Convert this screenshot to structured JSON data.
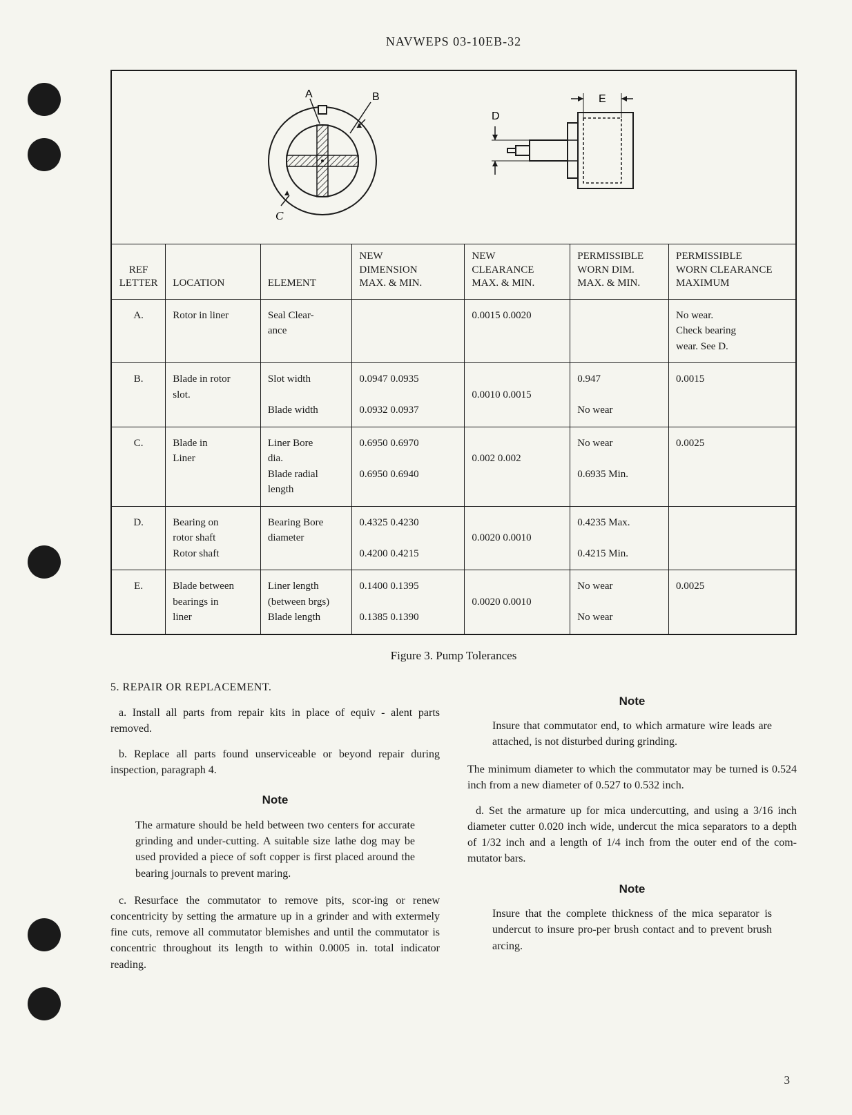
{
  "header": "NAVWEPS 03-10EB-32",
  "punch_holes": [
    120,
    200,
    790,
    1330,
    1430
  ],
  "diagram": {
    "labels": {
      "a": "A",
      "b": "B",
      "c": "C",
      "d": "D",
      "e": "E"
    },
    "colors": {
      "stroke": "#1a1a1a",
      "hatch": "#1a1a1a",
      "fill": "none"
    }
  },
  "table": {
    "headers": [
      "REF\nLETTER",
      "LOCATION",
      "ELEMENT",
      "NEW\nDIMENSION\nMAX. & MIN.",
      "NEW\nCLEARANCE\nMAX. & MIN.",
      "PERMISSIBLE\nWORN DIM.\nMAX. & MIN.",
      "PERMISSIBLE\nWORN CLEARANCE\nMAXIMUM"
    ],
    "rows": [
      {
        "ref": "A.",
        "location": "Rotor in liner",
        "element": "Seal Clear-\nance",
        "newdim": "",
        "newclr": "0.0015    0.0020",
        "worn": "",
        "wornclr": "No wear.\nCheck bearing\nwear.  See D."
      },
      {
        "ref": "B.",
        "location": "Blade in rotor\nslot.",
        "element": "Slot width\n\nBlade width",
        "newdim": "0.0947    0.0935\n\n0.0932    0.0937",
        "newclr": "\n0.0010    0.0015",
        "worn": "0.947\n\nNo wear",
        "wornclr": "0.0015"
      },
      {
        "ref": "C.",
        "location": "Blade in\nLiner",
        "element": "Liner Bore\ndia.\nBlade radial\nlength",
        "newdim": "0.6950    0.6970\n\n0.6950    0.6940",
        "newclr": "\n0.002      0.002",
        "worn": "No wear\n\n0.6935 Min.",
        "wornclr": "0.0025"
      },
      {
        "ref": "D.",
        "location": "Bearing on\nrotor shaft\nRotor shaft",
        "element": "Bearing Bore\ndiameter",
        "newdim": "0.4325    0.4230\n\n0.4200    0.4215",
        "newclr": "\n0.0020    0.0010",
        "worn": "0.4235 Max.\n\n0.4215 Min.",
        "wornclr": ""
      },
      {
        "ref": "E.",
        "location": "Blade between\nbearings in\nliner",
        "element": "Liner length\n(between brgs)\nBlade length",
        "newdim": "0.1400    0.1395\n\n0.1385    0.1390",
        "newclr": "\n0.0020    0.0010",
        "worn": "No wear\n\nNo wear",
        "wornclr": "0.0025"
      }
    ]
  },
  "figure_caption": "Figure 3.  Pump Tolerances",
  "body": {
    "section_head": "5. REPAIR OR REPLACEMENT.",
    "para_a": "a.  Install all parts from repair kits in place of equiv - alent parts removed.",
    "para_b": "b.  Replace all parts found unserviceable or beyond repair during inspection, paragraph 4.",
    "note1_head": "Note",
    "note1": "The armature should be held between two centers for accurate grinding and under-cutting. A suitable size lathe dog may be used provided a piece of soft copper is first placed around the bearing journals to prevent maring.",
    "para_c": "c.  Resurface the commutator to remove pits, scor-ing or renew concentricity by setting the armature up in a grinder and with extermely fine cuts, remove all commutator blemishes and until the commutator is concentric throughout its length to within 0.0005 in. total indicator reading.",
    "note2_head": "Note",
    "note2": "Insure that commutator end, to which armature wire leads are attached, is not disturbed during grinding.",
    "para_mindim": "The minimum diameter to which the commutator may be turned is 0.524 inch from a new diameter of 0.527 to 0.532 inch.",
    "para_d": "d.  Set the armature up for mica undercutting, and using a 3/16 inch diameter cutter 0.020 inch wide, undercut the mica separators to a depth of 1/32 inch and a length of 1/4 inch from the outer end of the com-mutator bars.",
    "note3_head": "Note",
    "note3": "Insure that the complete thickness of the mica separator is undercut to insure pro-per brush contact and to prevent brush arcing."
  },
  "page_number": "3"
}
